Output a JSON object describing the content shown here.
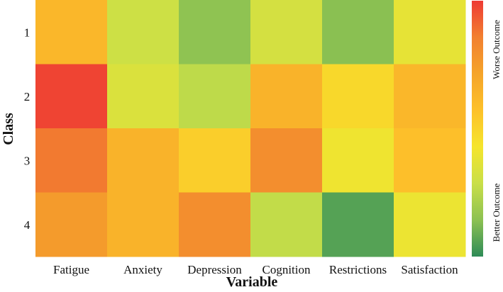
{
  "chart_data": {
    "type": "heatmap",
    "title": "",
    "xlabel": "Variable",
    "ylabel": "Class",
    "x_categories": [
      "Fatigue",
      "Anxiety",
      "Depression",
      "Cognition",
      "Restrictions",
      "Satisfaction"
    ],
    "y_categories": [
      "1",
      "2",
      "3",
      "4"
    ],
    "values": [
      [
        0.62,
        0.3,
        0.15,
        0.32,
        0.14,
        0.38
      ],
      [
        0.98,
        0.34,
        0.26,
        0.64,
        0.48,
        0.62
      ],
      [
        0.87,
        0.64,
        0.52,
        0.8,
        0.41,
        0.58
      ],
      [
        0.75,
        0.64,
        0.8,
        0.27,
        0.06,
        0.4
      ]
    ],
    "colorbar": {
      "range": [
        0,
        1
      ],
      "low_label": "Better Outcome",
      "high_label": "Worse Outcome",
      "colors": [
        "#2e8b57",
        "#8cc152",
        "#c9df48",
        "#f5e52c",
        "#fdc12a",
        "#f5a42a",
        "#f28030",
        "#ee3a34"
      ]
    }
  }
}
